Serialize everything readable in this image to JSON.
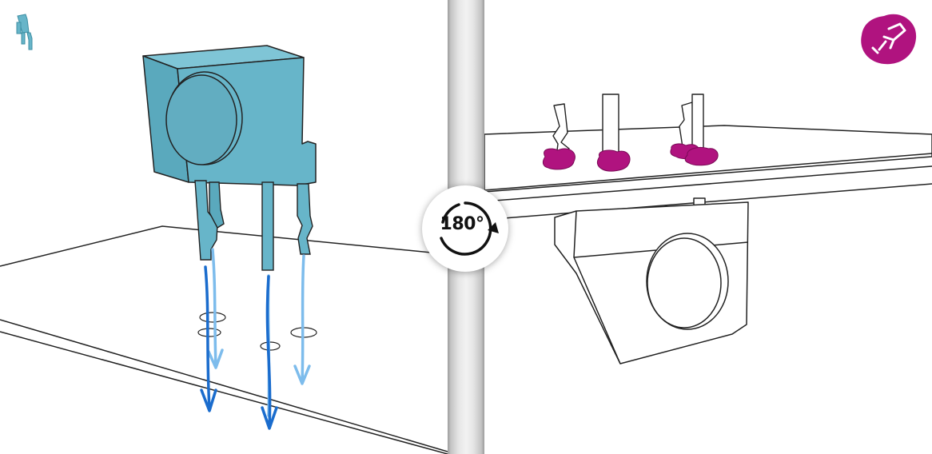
{
  "rotation_badge": {
    "label": "180°",
    "icon": "rotate-clockwise-icon"
  },
  "left_panel": {
    "corner_icon": "component-icon",
    "component_color": "#67b5c9",
    "arrow_dark": "#1a6ccd",
    "arrow_light": "#7dbcec",
    "lead_count": 3
  },
  "right_panel": {
    "corner_icon": "soldering-iron-icon",
    "solder_color": "#b0137f",
    "lead_count": 3
  }
}
